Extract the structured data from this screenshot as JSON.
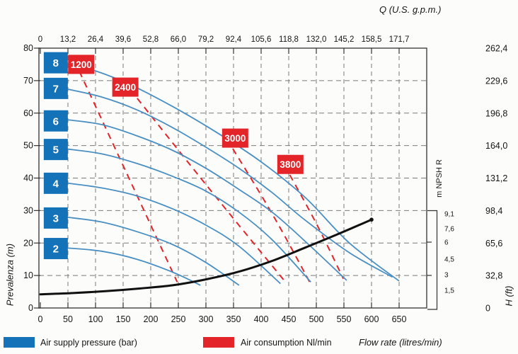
{
  "axes": {
    "top": {
      "label": "Q (U.S. g.p.m.)",
      "ticks": [
        "0",
        "13,2",
        "26,4",
        "39,6",
        "52,8",
        "66,0",
        "79,2",
        "92,4",
        "105,6",
        "118,8",
        "132,0",
        "145,2",
        "158,5",
        "171,7"
      ]
    },
    "bottom": {
      "label": "Flow rate (litres/min)",
      "ticks": [
        "0",
        "50",
        "100",
        "150",
        "200",
        "250",
        "300",
        "350",
        "400",
        "450",
        "500",
        "550",
        "600",
        "650"
      ]
    },
    "left": {
      "label": "Prevalenza (m)",
      "ticks": [
        "80",
        "70",
        "60",
        "50",
        "40",
        "30",
        "20",
        "10",
        "0"
      ]
    },
    "right_ft": {
      "label": "H (ft)",
      "ticks": [
        "262,4",
        "229,6",
        "196,8",
        "164,0",
        "131,2",
        "98,4",
        "65,6",
        "32,8",
        "0"
      ]
    },
    "npsh": {
      "label": "m NPSH R",
      "ticks": [
        "9,1",
        "7,6",
        "6",
        "4,5",
        "3",
        "1,5"
      ]
    }
  },
  "legend": {
    "pressure": "Air supply pressure (bar)",
    "consumption": "Air consumption Nl/min"
  },
  "colors": {
    "pressure_blue": "#1472b8",
    "consumption_red": "#e32429",
    "curve_blue": "#4a8fc2",
    "npsh_black": "#101010",
    "grid_gray": "#7a7a7a",
    "frame_gray": "#4d4d4d"
  },
  "chart_data": {
    "type": "line",
    "x_label": "Flow rate (litres/min)",
    "x_label_secondary": "Q (U.S. g.p.m.)",
    "y_label": "Prevalenza (m)",
    "y_label_secondary": "H (ft)",
    "x_range": [
      0,
      700
    ],
    "y_range": [
      0,
      80
    ],
    "grid": "dashed",
    "pressure_curves": [
      {
        "label": "8",
        "unit": "bar",
        "box_at": [
          28,
          75.5
        ],
        "points": [
          [
            46,
            75.5
          ],
          [
            100,
            73
          ],
          [
            160,
            69
          ],
          [
            240,
            62
          ],
          [
            320,
            54
          ],
          [
            400,
            45
          ],
          [
            480,
            34
          ],
          [
            560,
            20
          ],
          [
            650,
            8.3
          ]
        ]
      },
      {
        "label": "7",
        "unit": "bar",
        "box_at": [
          28,
          67.6
        ],
        "points": [
          [
            46,
            67.5
          ],
          [
            110,
            65
          ],
          [
            175,
            61
          ],
          [
            240,
            55.5
          ],
          [
            300,
            49.5
          ],
          [
            360,
            43
          ],
          [
            420,
            35.5
          ],
          [
            480,
            27
          ],
          [
            560,
            17
          ],
          [
            638,
            9.5
          ]
        ]
      },
      {
        "label": "6",
        "unit": "bar",
        "box_at": [
          28,
          57.6
        ],
        "points": [
          [
            46,
            58
          ],
          [
            110,
            56.5
          ],
          [
            175,
            53
          ],
          [
            240,
            48.5
          ],
          [
            300,
            43
          ],
          [
            360,
            36.5
          ],
          [
            420,
            29.5
          ],
          [
            480,
            20.5
          ],
          [
            555,
            8.5
          ]
        ]
      },
      {
        "label": "5",
        "unit": "bar",
        "box_at": [
          28,
          48.8
        ],
        "points": [
          [
            46,
            49
          ],
          [
            110,
            47.5
          ],
          [
            175,
            44.5
          ],
          [
            240,
            40.5
          ],
          [
            300,
            36
          ],
          [
            360,
            29.5
          ],
          [
            420,
            21
          ],
          [
            490,
            8
          ]
        ]
      },
      {
        "label": "4",
        "unit": "bar",
        "box_at": [
          28,
          38.4
        ],
        "points": [
          [
            46,
            38.5
          ],
          [
            110,
            37
          ],
          [
            175,
            34.5
          ],
          [
            240,
            30.5
          ],
          [
            300,
            25.5
          ],
          [
            360,
            19
          ],
          [
            435,
            7.5
          ]
        ]
      },
      {
        "label": "3",
        "unit": "bar",
        "box_at": [
          28,
          27.7
        ],
        "points": [
          [
            46,
            28
          ],
          [
            110,
            26.5
          ],
          [
            175,
            23.5
          ],
          [
            240,
            19.5
          ],
          [
            300,
            14
          ],
          [
            360,
            7
          ]
        ]
      },
      {
        "label": "2",
        "unit": "bar",
        "box_at": [
          28,
          18.3
        ],
        "points": [
          [
            46,
            18.5
          ],
          [
            110,
            17.5
          ],
          [
            175,
            15
          ],
          [
            240,
            11
          ],
          [
            290,
            7
          ]
        ]
      }
    ],
    "consumption_lines": [
      {
        "label": "1200",
        "unit": "Nl/min",
        "box_at": [
          74,
          75
        ],
        "points": [
          [
            62,
            76
          ],
          [
            155,
            42
          ],
          [
            248,
            8
          ]
        ]
      },
      {
        "label": "2400",
        "unit": "Nl/min",
        "box_at": [
          154,
          68
        ],
        "points": [
          [
            150,
            70
          ],
          [
            300,
            38
          ],
          [
            444,
            8
          ]
        ]
      },
      {
        "label": "3000",
        "unit": "Nl/min",
        "box_at": [
          353,
          52.3
        ],
        "points": [
          [
            338,
            52
          ],
          [
            420,
            29
          ],
          [
            488,
            8
          ]
        ]
      },
      {
        "label": "3800",
        "unit": "Nl/min",
        "box_at": [
          453,
          44.2
        ],
        "points": [
          [
            442,
            44
          ],
          [
            500,
            26
          ],
          [
            549,
            9
          ]
        ]
      }
    ],
    "npsh_curve": {
      "label": "m NPSH R",
      "points": [
        [
          0,
          4.2
        ],
        [
          60,
          4.6
        ],
        [
          120,
          5.2
        ],
        [
          180,
          6
        ],
        [
          240,
          7
        ],
        [
          300,
          8.8
        ],
        [
          360,
          11.2
        ],
        [
          420,
          14.5
        ],
        [
          480,
          18.6
        ],
        [
          540,
          22.8
        ],
        [
          600,
          27.2
        ]
      ]
    }
  }
}
